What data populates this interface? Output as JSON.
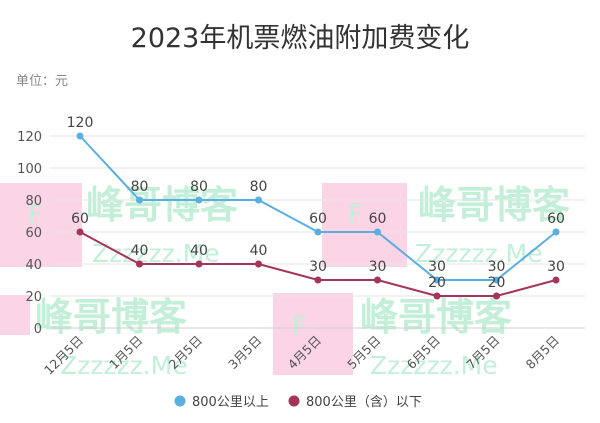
{
  "chart_data": {
    "type": "line",
    "title": "2023年机票燃油附加费变化",
    "unit_label": "单位：元",
    "categories": [
      "12月5日",
      "1月5日",
      "2月5日",
      "3月5日",
      "4月5日",
      "5月5日",
      "6月5日",
      "7月5日",
      "8月5日"
    ],
    "ylim": [
      0,
      120
    ],
    "yticks": [
      0,
      20,
      40,
      60,
      80,
      100,
      120
    ],
    "grid": true,
    "legend_position": "bottom",
    "series": [
      {
        "name": "800公里以上",
        "color": "#5aaee0",
        "values": [
          120,
          80,
          80,
          80,
          60,
          60,
          30,
          30,
          60
        ]
      },
      {
        "name": "800公里（含）以下",
        "color": "#a4345a",
        "values": [
          60,
          40,
          40,
          40,
          30,
          30,
          20,
          20,
          30
        ]
      }
    ]
  },
  "watermark": {
    "text": "峰哥博客",
    "subtext": "Zzzzzz.Me",
    "glyph": "F",
    "color": "#c3efd8",
    "accent": "#f9c6dc"
  }
}
